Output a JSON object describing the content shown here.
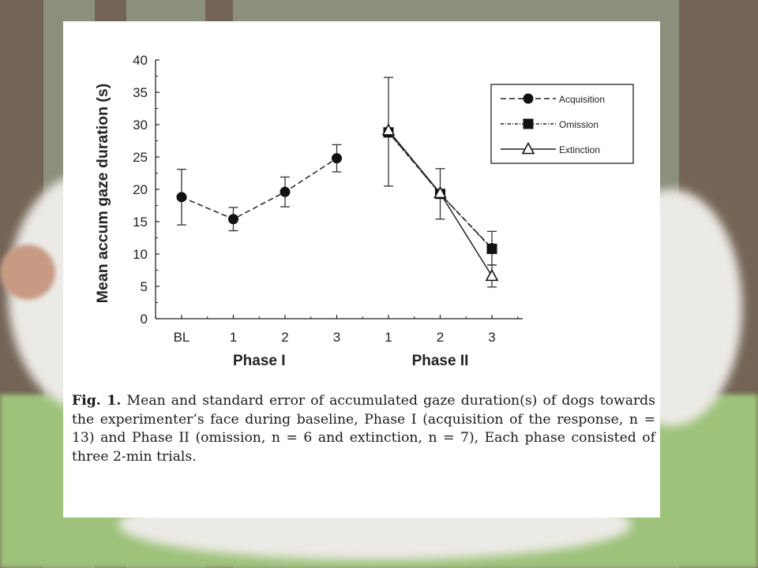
{
  "chart_data": {
    "type": "line",
    "ylabel": "Mean accum gaze duration (s)",
    "ylim": [
      0,
      40
    ],
    "yticks": [
      0,
      5,
      10,
      15,
      20,
      25,
      30,
      35,
      40
    ],
    "categories": [
      "BL",
      "1",
      "2",
      "3",
      "1",
      "2",
      "3"
    ],
    "groups": [
      "Phase I",
      "Phase II"
    ],
    "grid": false,
    "legend_position": "top-right",
    "series": [
      {
        "name": "Acquisition",
        "marker": "circle",
        "dash": "dashed",
        "points": [
          {
            "x": 0,
            "y": 18.8,
            "err": 4.3
          },
          {
            "x": 1,
            "y": 15.4,
            "err": 1.8
          },
          {
            "x": 2,
            "y": 19.6,
            "err": 2.3
          },
          {
            "x": 3,
            "y": 24.8,
            "err": 2.1
          },
          {
            "x": 4,
            "y": 28.9,
            "err": 8.4
          },
          {
            "x": 5,
            "y": 19.3,
            "err": 3.9
          },
          {
            "x": 6,
            "y": 10.9,
            "err": 2.6
          }
        ]
      },
      {
        "name": "Omission",
        "marker": "square",
        "dash": "dash-dot",
        "points": [
          {
            "x": 4,
            "y": 28.8
          },
          {
            "x": 5,
            "y": 19.3
          },
          {
            "x": 6,
            "y": 10.8
          }
        ]
      },
      {
        "name": "Extinction",
        "marker": "triangle-open",
        "dash": "solid",
        "points": [
          {
            "x": 4,
            "y": 29.1
          },
          {
            "x": 5,
            "y": 19.4
          },
          {
            "x": 6,
            "y": 6.6,
            "err": 1.7
          }
        ]
      }
    ]
  },
  "caption": {
    "label": "Fig. 1.",
    "text": "Mean and standard error of accumulated gaze duration(s) of dogs towards the experimenter’s face during baseline, Phase I (acquisition of the response, n = 13) and Phase II (omission, n = 6 and extinction, n = 7), Each phase consisted of three 2-min trials."
  }
}
